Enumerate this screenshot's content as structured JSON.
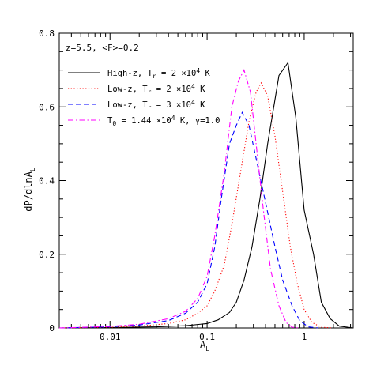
{
  "chart_data": {
    "type": "line",
    "annotation": "z=5.5, <F>=0.2",
    "xlabel": "A",
    "xlabel_sub": "L",
    "ylabel": "dP/dlnA",
    "ylabel_sub": "L",
    "xscale": "log",
    "xlim": [
      0.003,
      3.2
    ],
    "ylim": [
      0,
      0.8
    ],
    "x_ticks": [
      {
        "value": 0.01,
        "label": "0.01"
      },
      {
        "value": 0.1,
        "label": "0.1"
      },
      {
        "value": 1,
        "label": "1"
      }
    ],
    "y_ticks": [
      {
        "value": 0,
        "label": "0"
      },
      {
        "value": 0.2,
        "label": "0.2"
      },
      {
        "value": 0.4,
        "label": "0.4"
      },
      {
        "value": 0.6,
        "label": "0.6"
      },
      {
        "value": 0.8,
        "label": "0.8"
      }
    ],
    "legend_position": "top-left",
    "series": [
      {
        "legend": [
          {
            "text": "High-z, T"
          },
          {
            "text": "r",
            "sub": true
          },
          {
            "text": " = 2 ×10"
          },
          {
            "text": "4",
            "sup": true
          },
          {
            "text": " K"
          }
        ],
        "color": "#000000",
        "dash": "solid",
        "points": [
          [
            0.003,
            0
          ],
          [
            0.01,
            0.001
          ],
          [
            0.03,
            0.003
          ],
          [
            0.06,
            0.006
          ],
          [
            0.1,
            0.012
          ],
          [
            0.13,
            0.022
          ],
          [
            0.17,
            0.042
          ],
          [
            0.2,
            0.07
          ],
          [
            0.24,
            0.13
          ],
          [
            0.29,
            0.22
          ],
          [
            0.35,
            0.35
          ],
          [
            0.42,
            0.5
          ],
          [
            0.5,
            0.62
          ],
          [
            0.55,
            0.685
          ],
          [
            0.68,
            0.72
          ],
          [
            0.82,
            0.57
          ],
          [
            1.0,
            0.32
          ],
          [
            1.25,
            0.2
          ],
          [
            1.5,
            0.07
          ],
          [
            1.85,
            0.025
          ],
          [
            2.3,
            0.005
          ],
          [
            3.2,
            0
          ]
        ]
      },
      {
        "legend": [
          {
            "text": "Low-z, T"
          },
          {
            "text": "r",
            "sub": true
          },
          {
            "text": " = 2 ×10"
          },
          {
            "text": "4",
            "sup": true
          },
          {
            "text": " K"
          }
        ],
        "color": "#ff0000",
        "dash": "dotted",
        "points": [
          [
            0.003,
            0
          ],
          [
            0.01,
            0.002
          ],
          [
            0.02,
            0.005
          ],
          [
            0.04,
            0.012
          ],
          [
            0.06,
            0.022
          ],
          [
            0.08,
            0.04
          ],
          [
            0.1,
            0.06
          ],
          [
            0.12,
            0.1
          ],
          [
            0.15,
            0.17
          ],
          [
            0.18,
            0.28
          ],
          [
            0.22,
            0.42
          ],
          [
            0.27,
            0.56
          ],
          [
            0.32,
            0.64
          ],
          [
            0.36,
            0.665
          ],
          [
            0.42,
            0.63
          ],
          [
            0.5,
            0.52
          ],
          [
            0.6,
            0.37
          ],
          [
            0.72,
            0.22
          ],
          [
            0.85,
            0.12
          ],
          [
            1.0,
            0.05
          ],
          [
            1.2,
            0.015
          ],
          [
            1.5,
            0.002
          ],
          [
            2.0,
            0
          ]
        ]
      },
      {
        "legend": [
          {
            "text": "Low-z, T"
          },
          {
            "text": "r",
            "sub": true
          },
          {
            "text": " = 3 ×10"
          },
          {
            "text": "4",
            "sup": true
          },
          {
            "text": " K"
          }
        ],
        "color": "#0000ff",
        "dash": "dashed",
        "points": [
          [
            0.003,
            0
          ],
          [
            0.01,
            0.003
          ],
          [
            0.02,
            0.008
          ],
          [
            0.04,
            0.02
          ],
          [
            0.06,
            0.04
          ],
          [
            0.08,
            0.07
          ],
          [
            0.1,
            0.12
          ],
          [
            0.12,
            0.22
          ],
          [
            0.14,
            0.35
          ],
          [
            0.17,
            0.5
          ],
          [
            0.2,
            0.55
          ],
          [
            0.23,
            0.585
          ],
          [
            0.27,
            0.55
          ],
          [
            0.32,
            0.46
          ],
          [
            0.4,
            0.34
          ],
          [
            0.5,
            0.22
          ],
          [
            0.6,
            0.13
          ],
          [
            0.75,
            0.06
          ],
          [
            0.9,
            0.02
          ],
          [
            1.1,
            0.003
          ],
          [
            1.4,
            0
          ]
        ]
      },
      {
        "legend": [
          {
            "text": "T"
          },
          {
            "text": "0",
            "sub": true
          },
          {
            "text": " = 1.44 ×10"
          },
          {
            "text": "4",
            "sup": true
          },
          {
            "text": " K, γ=1.0"
          }
        ],
        "color": "#ff00ff",
        "dash": "dashdot",
        "points": [
          [
            0.003,
            0
          ],
          [
            0.01,
            0.004
          ],
          [
            0.02,
            0.01
          ],
          [
            0.04,
            0.025
          ],
          [
            0.06,
            0.045
          ],
          [
            0.08,
            0.08
          ],
          [
            0.1,
            0.14
          ],
          [
            0.12,
            0.25
          ],
          [
            0.15,
            0.42
          ],
          [
            0.18,
            0.6
          ],
          [
            0.21,
            0.67
          ],
          [
            0.24,
            0.7
          ],
          [
            0.28,
            0.64
          ],
          [
            0.32,
            0.5
          ],
          [
            0.38,
            0.32
          ],
          [
            0.45,
            0.16
          ],
          [
            0.55,
            0.06
          ],
          [
            0.65,
            0.015
          ],
          [
            0.75,
            0.002
          ],
          [
            0.9,
            0
          ]
        ]
      }
    ]
  }
}
